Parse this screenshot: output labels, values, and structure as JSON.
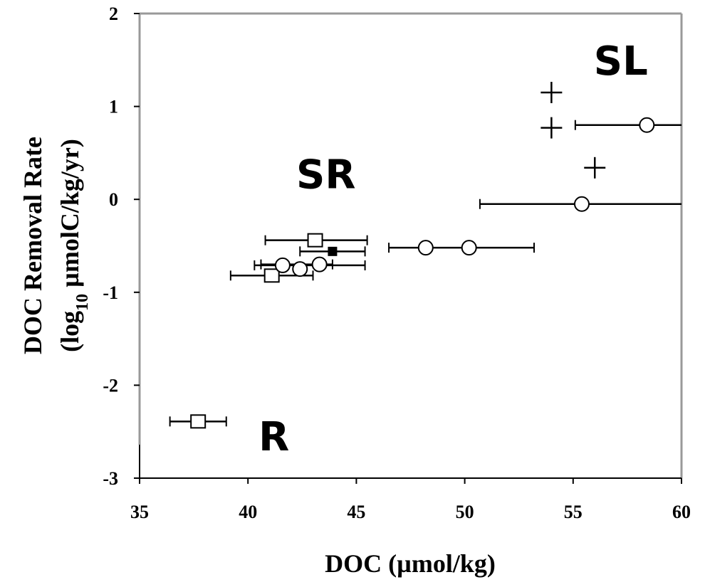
{
  "chart_data": {
    "type": "scatter",
    "xlabel": "DOC (µmol/kg)",
    "ylabel_line1": "DOC Removal Rate",
    "ylabel_line2_pre": "(log",
    "ylabel_line2_sub": "10",
    "ylabel_line2_post": " µmolC/kg/yr)",
    "xlim": [
      35,
      60
    ],
    "ylim": [
      -3,
      2
    ],
    "x_ticks": [
      "35",
      "40",
      "45",
      "50",
      "55",
      "60"
    ],
    "y_ticks": [
      "-3",
      "-2",
      "-1",
      "0",
      "1",
      "2"
    ],
    "grid": false,
    "colors": {
      "marker": "#000000",
      "frame": "#999999"
    },
    "group_labels": [
      {
        "text": "SL",
        "x": 57.2,
        "y": 1.34
      },
      {
        "text": "SR",
        "x": 43.6,
        "y": 0.12
      },
      {
        "text": "R",
        "x": 41.2,
        "y": -2.7
      }
    ],
    "series": [
      {
        "marker": "square",
        "points": [
          {
            "x": 43.1,
            "y": -0.44,
            "xerr": [
              40.8,
              45.5
            ]
          },
          {
            "x": 41.1,
            "y": -0.82,
            "xerr": [
              39.2,
              43.0
            ]
          },
          {
            "x": 37.7,
            "y": -2.39,
            "xerr": [
              36.4,
              39.0
            ]
          }
        ]
      },
      {
        "marker": "filled-square",
        "points": [
          {
            "x": 43.9,
            "y": -0.56,
            "xerr": [
              42.4,
              45.4
            ]
          }
        ]
      },
      {
        "marker": "circle",
        "points": [
          {
            "x": 41.6,
            "y": -0.71,
            "xerr": [
              40.3,
              45.4
            ]
          },
          {
            "x": 42.4,
            "y": -0.75
          },
          {
            "x": 43.3,
            "y": -0.7,
            "xerr": [
              40.6,
              43.9
            ]
          },
          {
            "x": 48.2,
            "y": -0.52,
            "xerr": [
              46.5,
              53.2
            ]
          },
          {
            "x": 50.2,
            "y": -0.52
          },
          {
            "x": 55.4,
            "y": -0.05,
            "xerr": [
              50.7,
              60.0
            ]
          },
          {
            "x": 58.4,
            "y": 0.8,
            "xerr": [
              55.1,
              60.0
            ]
          }
        ]
      },
      {
        "marker": "plus",
        "points": [
          {
            "x": 54.0,
            "y": 1.15
          },
          {
            "x": 54.0,
            "y": 0.77
          },
          {
            "x": 56.0,
            "y": 0.34
          }
        ]
      }
    ]
  }
}
